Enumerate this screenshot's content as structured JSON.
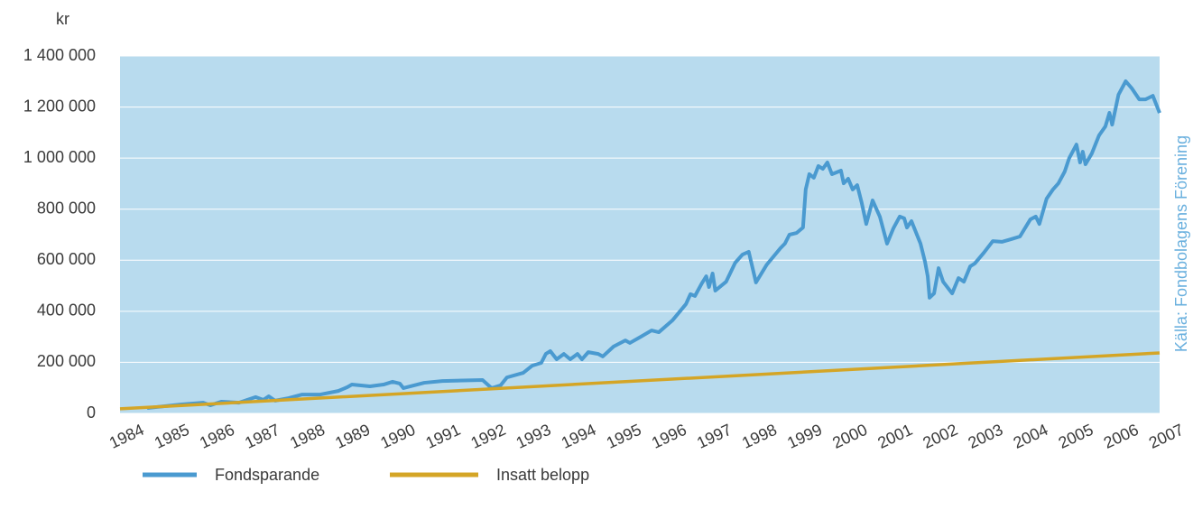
{
  "chart_data": {
    "type": "line",
    "y_label": "kr",
    "source": "Källa: Fondbolagens Förening",
    "xlim": [
      1984,
      2007
    ],
    "xticks": [
      1984,
      1985,
      1986,
      1987,
      1988,
      1989,
      1990,
      1991,
      1992,
      1993,
      1994,
      1995,
      1996,
      1997,
      1998,
      1999,
      2000,
      2001,
      2002,
      2003,
      2004,
      2005,
      2006,
      2007
    ],
    "ylim": [
      0,
      1400000
    ],
    "yticks": [
      0,
      {
        "value": 200000,
        "label": "200 000"
      },
      {
        "value": 400000,
        "label": "400 000"
      },
      {
        "value": 600000,
        "label": "600 000"
      },
      {
        "value": 800000,
        "label": "800 000"
      },
      {
        "value": 1000000,
        "label": "1 000 000"
      },
      {
        "value": 1200000,
        "label": "1 200 000"
      },
      {
        "value": 1400000,
        "label": "1 400 000"
      }
    ],
    "grid": true,
    "background": "#b8dbee",
    "series": [
      {
        "name": "Fondsparande",
        "color": "#4a9ad0",
        "x": [
          1984.6,
          1985.34,
          1985.84,
          1986.0,
          1986.24,
          1986.63,
          1987.0,
          1987.17,
          1987.29,
          1987.43,
          1987.73,
          1988.03,
          1988.43,
          1988.83,
          1989.03,
          1989.13,
          1989.53,
          1989.83,
          1990.03,
          1990.19,
          1990.27,
          1990.73,
          1991.13,
          1992.02,
          1992.22,
          1992.42,
          1992.56,
          1992.92,
          1993.12,
          1993.32,
          1993.42,
          1993.52,
          1993.66,
          1993.82,
          1993.96,
          1994.12,
          1994.22,
          1994.36,
          1994.58,
          1994.68,
          1994.92,
          1995.18,
          1995.28,
          1995.52,
          1995.76,
          1995.92,
          1996.22,
          1996.52,
          1996.62,
          1996.72,
          1996.87,
          1996.97,
          1997.03,
          1997.11,
          1997.17,
          1997.41,
          1997.61,
          1997.77,
          1997.91,
          1998.07,
          1998.31,
          1998.61,
          1998.71,
          1998.81,
          1998.97,
          1999.11,
          1999.17,
          1999.25,
          1999.35,
          1999.45,
          1999.55,
          1999.65,
          1999.75,
          1999.95,
          2000.01,
          2000.11,
          2000.21,
          2000.31,
          2000.41,
          2000.51,
          2000.65,
          2000.81,
          2000.97,
          2001.11,
          2001.25,
          2001.35,
          2001.41,
          2001.51,
          2001.71,
          2001.81,
          2001.87,
          2001.91,
          2002.01,
          2002.11,
          2002.21,
          2002.41,
          2002.55,
          2002.67,
          2002.81,
          2002.91,
          2003.11,
          2003.31,
          2003.51,
          2003.71,
          2003.91,
          2004.14,
          2004.26,
          2004.34,
          2004.5,
          2004.64,
          2004.76,
          2004.9,
          2005.0,
          2005.16,
          2005.24,
          2005.3,
          2005.36,
          2005.5,
          2005.66,
          2005.8,
          2005.89,
          2005.95,
          2006.09,
          2006.25,
          2006.39,
          2006.55,
          2006.69,
          2006.85,
          2007.0
        ],
        "values": [
          21000,
          35000,
          42000,
          32000,
          46000,
          42000,
          64000,
          53000,
          67000,
          50000,
          60000,
          74000,
          74000,
          88000,
          103000,
          113000,
          106000,
          113000,
          124000,
          117000,
          99000,
          120000,
          127000,
          131000,
          99000,
          110000,
          141000,
          159000,
          187000,
          198000,
          233000,
          244000,
          212000,
          233000,
          212000,
          233000,
          212000,
          240000,
          233000,
          223000,
          262000,
          286000,
          276000,
          300000,
          325000,
          318000,
          364000,
          428000,
          467000,
          460000,
          509000,
          537000,
          495000,
          548000,
          481000,
          516000,
          590000,
          622000,
          633000,
          513000,
          583000,
          647000,
          665000,
          700000,
          707000,
          728000,
          877000,
          937000,
          923000,
          969000,
          958000,
          983000,
          937000,
          951000,
          901000,
          919000,
          877000,
          894000,
          824000,
          742000,
          834000,
          771000,
          665000,
          725000,
          771000,
          764000,
          728000,
          753000,
          665000,
          594000,
          537000,
          453000,
          470000,
          569000,
          516000,
          470000,
          530000,
          516000,
          576000,
          587000,
          629000,
          675000,
          672000,
          682000,
          693000,
          760000,
          771000,
          742000,
          841000,
          877000,
          901000,
          947000,
          1000000,
          1053000,
          983000,
          1025000,
          976000,
          1018000,
          1089000,
          1124000,
          1177000,
          1131000,
          1248000,
          1301000,
          1272000,
          1230000,
          1230000,
          1244000,
          1177000
        ]
      },
      {
        "name": "Insatt belopp",
        "color": "#d4a526",
        "x": [
          1984,
          2007
        ],
        "values": [
          18000,
          237000
        ]
      }
    ]
  }
}
